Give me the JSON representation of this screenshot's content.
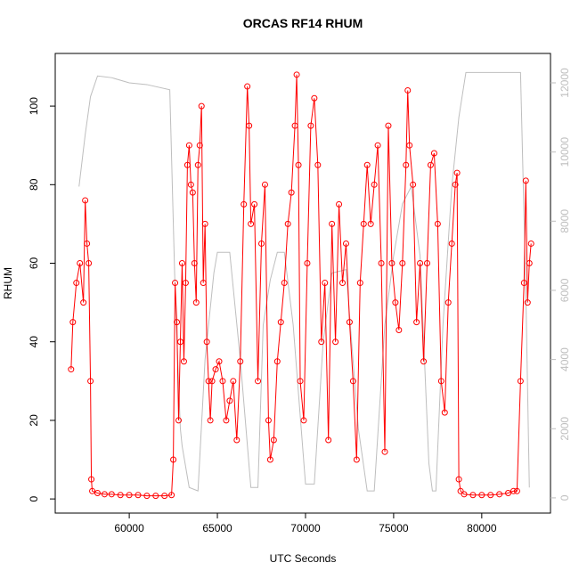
{
  "chart_data": {
    "type": "line",
    "title": "ORCAS RF14 RHUM",
    "x_label": "UTC Seconds",
    "y_label": "RHUM",
    "xlim": [
      55800,
      83900
    ],
    "xticks": [
      60000,
      65000,
      70000,
      75000,
      80000
    ],
    "ylim": [
      -3.6,
      113.4
    ],
    "yticks": [
      0,
      20,
      40,
      60,
      80,
      100
    ],
    "y2lim": [
      -440,
      12850
    ],
    "y2ticks": [
      0,
      2000,
      4000,
      6000,
      8000,
      10000,
      12000
    ],
    "series": [
      {
        "color": "#ff0000",
        "marker": "circle",
        "x": [
          56700,
          56800,
          57000,
          57200,
          57400,
          57500,
          57600,
          57700,
          57800,
          57850,
          57900,
          58200,
          58600,
          59000,
          59500,
          60000,
          60500,
          61000,
          61500,
          62000,
          62400,
          62500,
          62600,
          62700,
          62800,
          62900,
          63000,
          63100,
          63200,
          63300,
          63400,
          63500,
          63600,
          63700,
          63800,
          63900,
          64000,
          64100,
          64200,
          64300,
          64400,
          64500,
          64600,
          64700,
          64900,
          65100,
          65300,
          65500,
          65700,
          65900,
          66100,
          66300,
          66500,
          66700,
          66800,
          66900,
          67100,
          67300,
          67500,
          67700,
          67900,
          68000,
          68200,
          68400,
          68600,
          68800,
          69000,
          69200,
          69400,
          69500,
          69600,
          69700,
          69900,
          70100,
          70300,
          70500,
          70700,
          70900,
          71100,
          71300,
          71500,
          71700,
          71900,
          72100,
          72300,
          72500,
          72700,
          72900,
          73100,
          73300,
          73500,
          73700,
          73900,
          74100,
          74300,
          74500,
          74700,
          74900,
          75100,
          75300,
          75500,
          75700,
          75800,
          75900,
          76100,
          76300,
          76500,
          76700,
          76900,
          77100,
          77300,
          77500,
          77700,
          77900,
          78100,
          78300,
          78500,
          78600,
          78700,
          78800,
          79000,
          79500,
          80000,
          80500,
          81000,
          81500,
          81800,
          82000,
          82200,
          82400,
          82500,
          82600,
          82700,
          82800
        ],
        "values": [
          33,
          45,
          55,
          60,
          50,
          76,
          65,
          60,
          30,
          5,
          2,
          1.5,
          1.2,
          1.2,
          1.0,
          1.0,
          1.0,
          0.8,
          0.8,
          0.8,
          1.0,
          10,
          55,
          45,
          20,
          40,
          60,
          35,
          55,
          85,
          90,
          80,
          78,
          60,
          50,
          85,
          90,
          100,
          55,
          70,
          40,
          30,
          20,
          30,
          33,
          35,
          30,
          20,
          25,
          30,
          15,
          35,
          75,
          105,
          95,
          70,
          75,
          30,
          65,
          80,
          20,
          10,
          15,
          35,
          45,
          55,
          70,
          78,
          95,
          108,
          85,
          30,
          20,
          60,
          95,
          102,
          85,
          40,
          55,
          15,
          70,
          40,
          75,
          55,
          65,
          45,
          30,
          10,
          55,
          70,
          85,
          70,
          80,
          90,
          60,
          12,
          95,
          60,
          50,
          43,
          60,
          85,
          104,
          90,
          80,
          45,
          60,
          35,
          60,
          85,
          88,
          70,
          30,
          22,
          50,
          65,
          80,
          83,
          5,
          2,
          1.2,
          1.0,
          1.0,
          1.0,
          1.2,
          1.5,
          2,
          2,
          30,
          55,
          81,
          50,
          60,
          65
        ]
      },
      {
        "color": "#bebebe",
        "axis": "y2",
        "x": [
          57150,
          57500,
          57800,
          58200,
          59000,
          60000,
          61000,
          62300,
          62600,
          62900,
          63000,
          63400,
          63900,
          64300,
          64800,
          65000,
          65700,
          66300,
          66900,
          67300,
          67600,
          68000,
          68400,
          68800,
          69300,
          70000,
          70500,
          71000,
          71500,
          72300,
          73000,
          73500,
          73900,
          74500,
          75000,
          75500,
          76000,
          76500,
          77000,
          77200,
          77400,
          77800,
          78300,
          78700,
          79100,
          80000,
          81000,
          82200,
          82500,
          82700
        ],
        "values": [
          9000,
          10500,
          11600,
          12200,
          12150,
          12000,
          11950,
          11800,
          6000,
          2000,
          1500,
          300,
          200,
          4000,
          6500,
          7100,
          7100,
          4000,
          300,
          300,
          5000,
          6300,
          7100,
          7100,
          5000,
          400,
          400,
          4500,
          6500,
          6600,
          2000,
          200,
          200,
          5000,
          7000,
          8500,
          9000,
          7000,
          1000,
          200,
          200,
          5000,
          9000,
          11000,
          12300,
          12300,
          12300,
          12300,
          6000,
          300
        ]
      }
    ]
  }
}
